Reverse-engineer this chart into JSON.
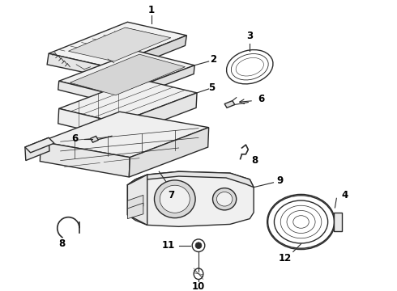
{
  "bg_color": "#ffffff",
  "line_color": "#2a2a2a",
  "label_color": "#000000",
  "lw_main": 1.0,
  "lw_thin": 0.5,
  "label_fs": 8.5
}
